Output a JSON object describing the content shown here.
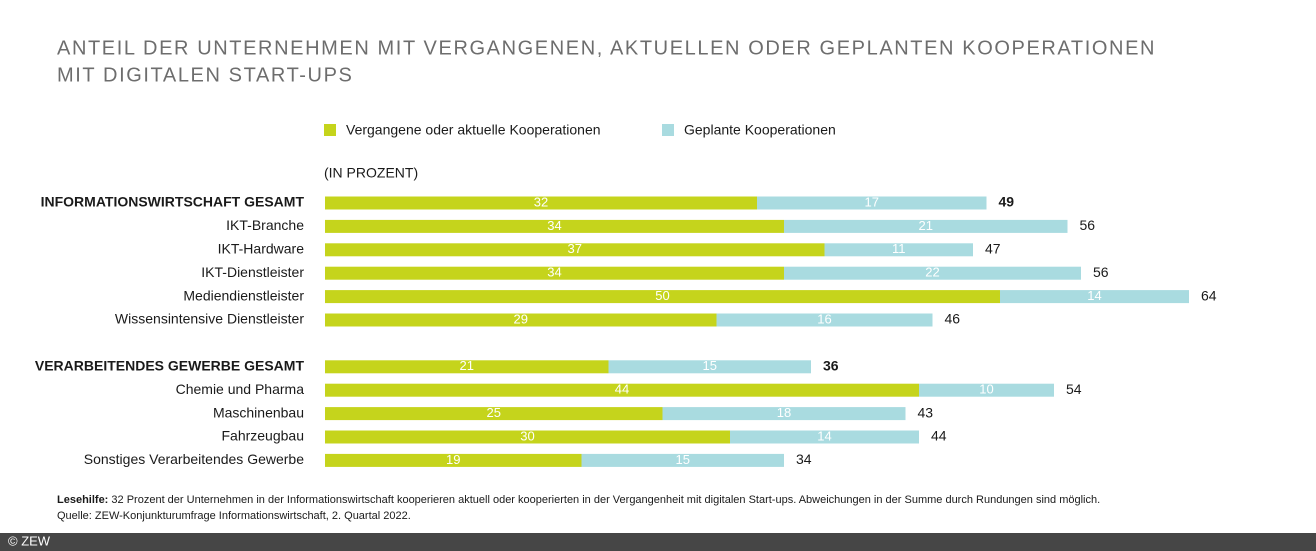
{
  "chart_data": {
    "type": "stacked-bar-horizontal",
    "title": [
      "ANTEIL DER UNTERNEHMEN MIT VERGANGENEN, AKTUELLEN ODER GEPLANTEN KOOPERATIONEN",
      "MIT DIGITALEN START-UPS"
    ],
    "unit_label": "(IN PROZENT)",
    "categories": [
      "INFORMATIONSWIRTSCHAFT GESAMT",
      "IKT-Branche",
      "IKT-Hardware",
      "IKT-Dienstleister",
      "Mediendienstleister",
      "Wissensintensive Dienstleister",
      null,
      "VERARBEITENDES GEWERBE GESAMT",
      "Chemie und Pharma",
      "Maschinenbau",
      "Fahrzeugbau",
      "Sonstiges Verarbeitendes Gewerbe"
    ],
    "series": [
      {
        "name": "Vergangene oder aktuelle Kooperationen",
        "color": "#c5d41c",
        "values": [
          32,
          34,
          37,
          34,
          50,
          29,
          null,
          21,
          44,
          25,
          30,
          19
        ]
      },
      {
        "name": "Geplante Kooperationen",
        "color": "#a9dbe0",
        "values": [
          17,
          21,
          11,
          22,
          14,
          16,
          null,
          15,
          10,
          18,
          14,
          15
        ]
      }
    ],
    "totals": [
      49,
      56,
      47,
      56,
      64,
      46,
      null,
      36,
      54,
      43,
      44,
      34
    ],
    "note_label": "Lesehilfe:",
    "note": "32 Prozent der Unternehmen in der Informationswirtschaft kooperieren aktuell oder kooperierten in der Vergangenheit mit digitalen Start-ups. Abweichungen in der Summe durch Rundungen sind möglich.",
    "source": "Quelle: ZEW-Konjunkturumfrage Informationswirtschaft, 2. Quartal 2022.",
    "copyright": "© ZEW"
  }
}
